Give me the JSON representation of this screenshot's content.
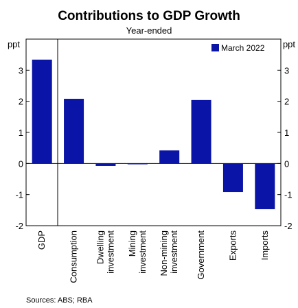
{
  "chart_data": {
    "type": "bar",
    "title": "Contributions to GDP Growth",
    "subtitle": "Year-ended",
    "ylabel": "ppt",
    "ylim": [
      -2,
      4
    ],
    "yticks": [
      -2,
      -1,
      0,
      1,
      2,
      3
    ],
    "grid": false,
    "legend_position": "top-right",
    "categories": [
      [
        "GDP"
      ],
      [
        "Consumption"
      ],
      [
        "Dwelling",
        "investment"
      ],
      [
        "Mining",
        "investment"
      ],
      [
        "Non-mining",
        "investment"
      ],
      [
        "Government"
      ],
      [
        "Exports"
      ],
      [
        "Imports"
      ]
    ],
    "series": [
      {
        "name": "March 2022",
        "color": "#0a14a6",
        "values": [
          3.34,
          2.08,
          -0.08,
          -0.02,
          0.42,
          2.04,
          -0.92,
          -1.47
        ]
      }
    ]
  },
  "source": "Sources: ABS; RBA"
}
